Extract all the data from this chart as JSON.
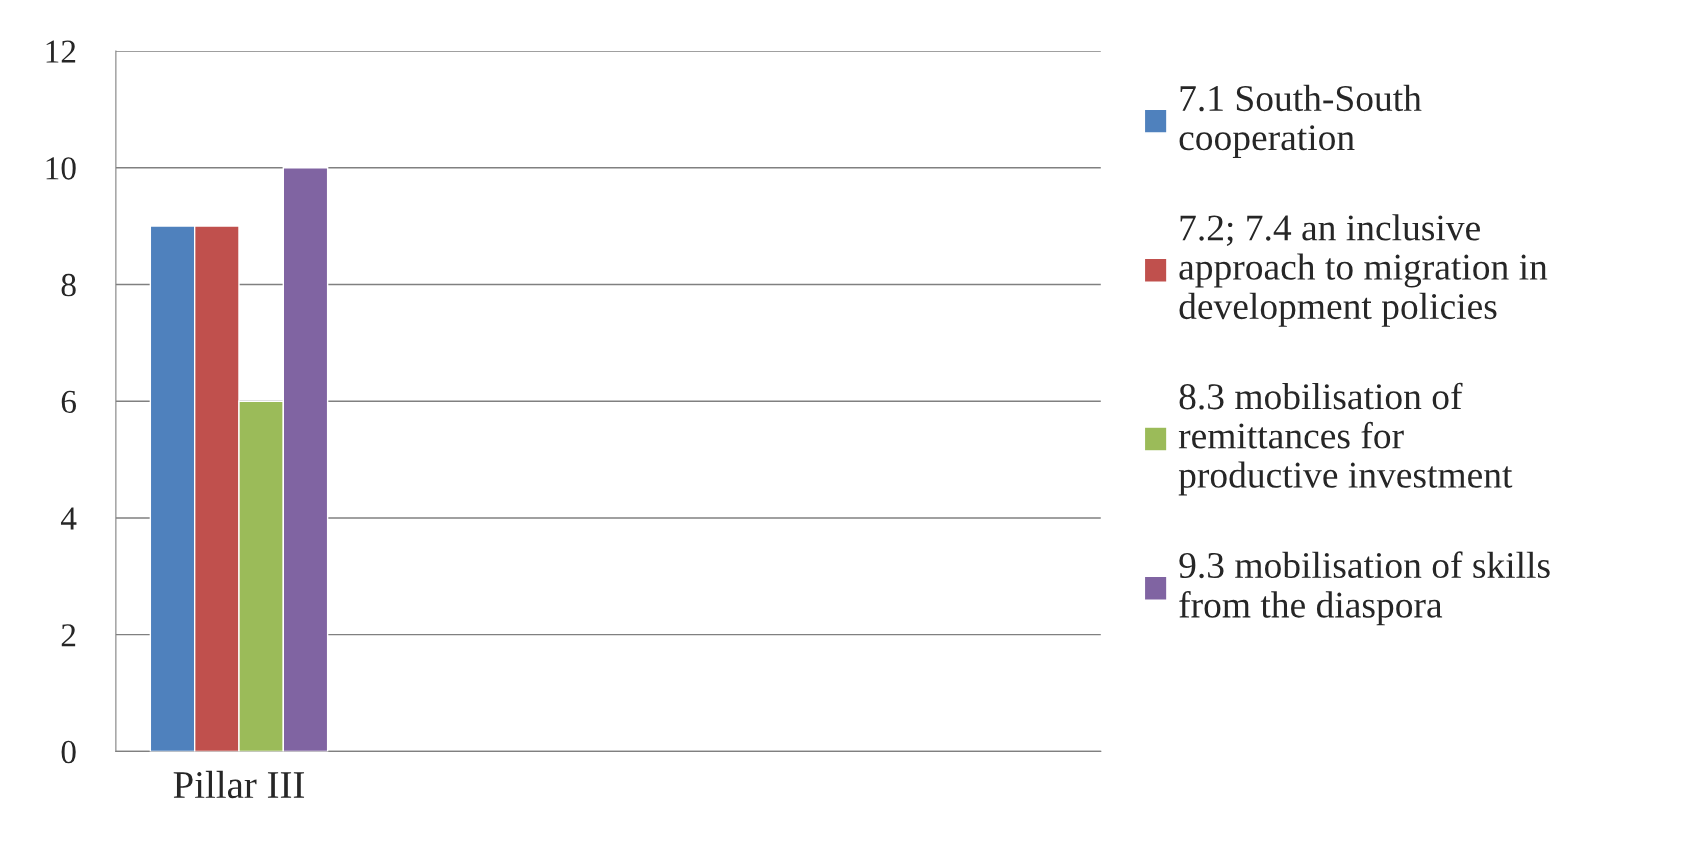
{
  "chart_data": {
    "type": "bar",
    "categories": [
      "Pillar III",
      null,
      null,
      null
    ],
    "series": [
      {
        "name": "7.1 South-South\ncooperation",
        "color": "#4f81bd",
        "values": [
          9,
          null,
          null,
          null
        ]
      },
      {
        "name": "7.2; 7.4 an inclusive\napproach to migration in\ndevelopment policies",
        "color": "#c0504d",
        "values": [
          9,
          null,
          null,
          null
        ]
      },
      {
        "name": "8.3 mobilisation of\nremittances for\nproductive investment",
        "color": "#9bbb59",
        "values": [
          6,
          null,
          null,
          null
        ]
      },
      {
        "name": "9.3 mobilisation of skills\nfrom the diaspora",
        "color": "#8064a2",
        "values": [
          10,
          null,
          null,
          null
        ]
      }
    ],
    "ylim": [
      0,
      12
    ],
    "yticks": [
      0,
      2,
      4,
      6,
      8,
      10,
      12
    ],
    "grid": "y",
    "legend": "right"
  }
}
